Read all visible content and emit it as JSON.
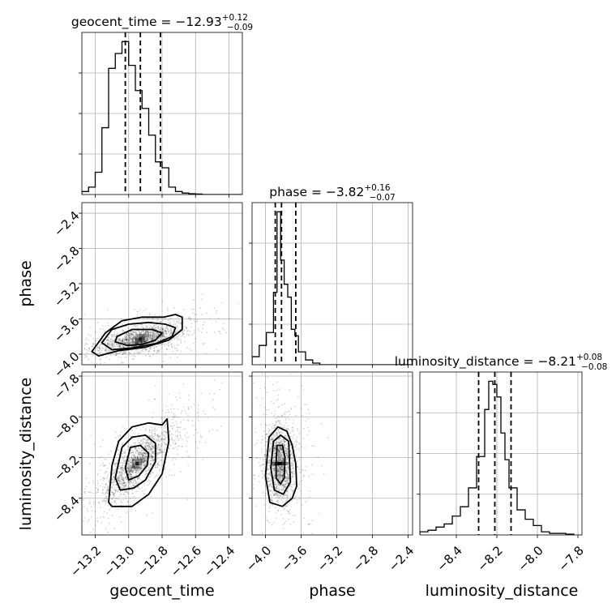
{
  "figure": {
    "type": "corner_plot",
    "title_format": "{name} = {median}",
    "colors": {
      "line": "#000000",
      "scatter": "#000000",
      "grid": "#b0b0b0"
    }
  },
  "chart_data": [
    {
      "type": "histogram",
      "panel": "geocent_time",
      "title_name": "geocent_time",
      "median": "−12.93",
      "err_plus": "+0.12",
      "err_minus": "−0.09",
      "quantiles": [
        -13.02,
        -12.93,
        -12.81
      ],
      "xlim": [
        -13.28,
        -12.32
      ],
      "bin_edges": [
        -13.28,
        -13.24,
        -13.2,
        -13.16,
        -13.12,
        -13.08,
        -13.04,
        -13.0,
        -12.96,
        -12.92,
        -12.88,
        -12.84,
        -12.8,
        -12.76,
        -12.72,
        -12.68,
        -12.64,
        -12.6,
        -12.56,
        -12.52,
        -12.48,
        -12.44,
        -12.4,
        -12.36,
        -12.32
      ],
      "counts": [
        2,
        5,
        15,
        45,
        85,
        95,
        103,
        87,
        70,
        58,
        40,
        22,
        18,
        5,
        2,
        1,
        0.5,
        0.3,
        0,
        0,
        0,
        0,
        0,
        0
      ]
    },
    {
      "type": "histogram",
      "panel": "phase",
      "title_name": "phase",
      "median": "−3.82",
      "err_plus": "+0.16",
      "err_minus": "−0.07",
      "quantiles": [
        -3.89,
        -3.82,
        -3.66
      ],
      "xlim": [
        -4.15,
        -2.35
      ],
      "bin_edges": [
        -4.15,
        -4.07,
        -3.99,
        -3.91,
        -3.87,
        -3.83,
        -3.79,
        -3.75,
        -3.71,
        -3.67,
        -3.63,
        -3.55,
        -3.47,
        -3.39,
        -2.35
      ],
      "counts": [
        5,
        12,
        20,
        45,
        95,
        65,
        50,
        42,
        22,
        18,
        8,
        3,
        1,
        0
      ]
    },
    {
      "type": "histogram",
      "panel": "luminosity_distance",
      "title_name": "luminosity_distance",
      "median": "−8.21",
      "err_plus": "+0.08",
      "err_minus": "−0.08",
      "quantiles": [
        -8.29,
        -8.21,
        -8.13
      ],
      "xlim": [
        -8.58,
        -7.78
      ],
      "bin_edges": [
        -8.58,
        -8.54,
        -8.5,
        -8.46,
        -8.42,
        -8.38,
        -8.34,
        -8.3,
        -8.26,
        -8.24,
        -8.22,
        -8.2,
        -8.18,
        -8.16,
        -8.14,
        -8.1,
        -8.06,
        -8.02,
        -7.98,
        -7.94,
        -7.9,
        -7.86,
        -7.82
      ],
      "counts": [
        2,
        3,
        5,
        7,
        12,
        18,
        30,
        50,
        80,
        98,
        96,
        88,
        65,
        48,
        30,
        16,
        10,
        6,
        2,
        1,
        1,
        0.5
      ]
    },
    {
      "type": "scatter",
      "panel": "phase_vs_geocent_time",
      "x_name": "geocent_time",
      "y_name": "phase",
      "xlim": [
        -13.28,
        -12.32
      ],
      "ylim": [
        -4.12,
        -2.28
      ],
      "center": [
        -12.93,
        -3.83
      ],
      "spread": [
        0.12,
        0.08
      ],
      "correlation": 0.55,
      "contours": [
        [
          [
            -13.07,
            -3.8
          ],
          [
            -12.98,
            -3.72
          ],
          [
            -12.86,
            -3.72
          ],
          [
            -12.8,
            -3.76
          ],
          [
            -12.84,
            -3.84
          ],
          [
            -12.92,
            -3.89
          ],
          [
            -13.01,
            -3.9
          ],
          [
            -13.08,
            -3.86
          ]
        ],
        [
          [
            -13.16,
            -3.87
          ],
          [
            -13.1,
            -3.72
          ],
          [
            -13.0,
            -3.66
          ],
          [
            -12.88,
            -3.64
          ],
          [
            -12.78,
            -3.66
          ],
          [
            -12.72,
            -3.7
          ],
          [
            -12.74,
            -3.8
          ],
          [
            -12.84,
            -3.88
          ],
          [
            -12.98,
            -3.93
          ],
          [
            -13.1,
            -3.95
          ]
        ],
        [
          [
            -13.22,
            -3.97
          ],
          [
            -13.14,
            -3.76
          ],
          [
            -13.04,
            -3.62
          ],
          [
            -12.92,
            -3.58
          ],
          [
            -12.79,
            -3.58
          ],
          [
            -12.72,
            -3.55
          ],
          [
            -12.68,
            -3.58
          ],
          [
            -12.68,
            -3.72
          ],
          [
            -12.76,
            -3.84
          ],
          [
            -12.9,
            -3.92
          ],
          [
            -13.06,
            -3.96
          ],
          [
            -13.18,
            -4.02
          ]
        ]
      ]
    },
    {
      "type": "scatter",
      "panel": "luminosity_distance_vs_geocent_time",
      "x_name": "geocent_time",
      "y_name": "luminosity_distance",
      "xlim": [
        -13.28,
        -12.32
      ],
      "ylim": [
        -8.58,
        -7.78
      ],
      "center": [
        -12.95,
        -8.23
      ],
      "spread": [
        0.11,
        0.09
      ],
      "correlation": 0.78,
      "contours": [
        [
          [
            -13.02,
            -8.25
          ],
          [
            -12.99,
            -8.15
          ],
          [
            -12.93,
            -8.14
          ],
          [
            -12.88,
            -8.18
          ],
          [
            -12.89,
            -8.24
          ],
          [
            -12.94,
            -8.29
          ],
          [
            -13.0,
            -8.31
          ]
        ],
        [
          [
            -13.08,
            -8.3
          ],
          [
            -13.04,
            -8.15
          ],
          [
            -12.98,
            -8.1
          ],
          [
            -12.9,
            -8.09
          ],
          [
            -12.84,
            -8.13
          ],
          [
            -12.84,
            -8.22
          ],
          [
            -12.9,
            -8.31
          ],
          [
            -12.97,
            -8.35
          ],
          [
            -13.05,
            -8.36
          ]
        ],
        [
          [
            -13.12,
            -8.42
          ],
          [
            -13.1,
            -8.24
          ],
          [
            -13.06,
            -8.12
          ],
          [
            -12.98,
            -8.05
          ],
          [
            -12.88,
            -8.03
          ],
          [
            -12.8,
            -8.04
          ],
          [
            -12.77,
            -8.01
          ],
          [
            -12.76,
            -8.12
          ],
          [
            -12.8,
            -8.28
          ],
          [
            -12.88,
            -8.38
          ],
          [
            -12.98,
            -8.44
          ],
          [
            -13.1,
            -8.44
          ]
        ]
      ]
    },
    {
      "type": "scatter",
      "panel": "luminosity_distance_vs_phase",
      "x_name": "phase",
      "y_name": "luminosity_distance",
      "xlim": [
        -4.15,
        -2.35
      ],
      "ylim": [
        -8.58,
        -7.78
      ],
      "center": [
        -3.84,
        -8.23
      ],
      "spread": [
        0.08,
        0.09
      ],
      "correlation": -0.1,
      "contours": [
        [
          [
            -3.88,
            -8.22
          ],
          [
            -3.87,
            -8.14
          ],
          [
            -3.81,
            -8.14
          ],
          [
            -3.78,
            -8.2
          ],
          [
            -3.79,
            -8.3
          ],
          [
            -3.83,
            -8.33
          ],
          [
            -3.88,
            -8.3
          ]
        ],
        [
          [
            -3.94,
            -8.25
          ],
          [
            -3.91,
            -8.12
          ],
          [
            -3.83,
            -8.09
          ],
          [
            -3.74,
            -8.12
          ],
          [
            -3.73,
            -8.22
          ],
          [
            -3.72,
            -8.32
          ],
          [
            -3.8,
            -8.38
          ],
          [
            -3.9,
            -8.36
          ]
        ],
        [
          [
            -4.0,
            -8.29
          ],
          [
            -3.96,
            -8.1
          ],
          [
            -3.86,
            -8.05
          ],
          [
            -3.76,
            -8.07
          ],
          [
            -3.7,
            -8.14
          ],
          [
            -3.66,
            -8.23
          ],
          [
            -3.65,
            -8.34
          ],
          [
            -3.7,
            -8.4
          ],
          [
            -3.81,
            -8.44
          ],
          [
            -3.95,
            -8.42
          ]
        ]
      ]
    }
  ],
  "axes": {
    "geocent_time": {
      "label": "geocent_time",
      "ticks": [
        -13.2,
        -13.0,
        -12.8,
        -12.6,
        -12.4
      ],
      "tick_labels": [
        "−13.2",
        "−13.0",
        "−12.8",
        "−12.6",
        "−12.4"
      ]
    },
    "phase": {
      "label": "phase",
      "ticks": [
        -4.0,
        -3.6,
        -3.2,
        -2.8,
        -2.4
      ],
      "tick_labels": [
        "−4.0",
        "−3.6",
        "−3.2",
        "−2.8",
        "−2.4"
      ]
    },
    "luminosity_distance": {
      "label": "luminosity_distance",
      "ticks": [
        -8.4,
        -8.2,
        -8.0,
        -7.8
      ],
      "tick_labels": [
        "−8.4",
        "−8.2",
        "−8.0",
        "−7.8"
      ]
    }
  }
}
